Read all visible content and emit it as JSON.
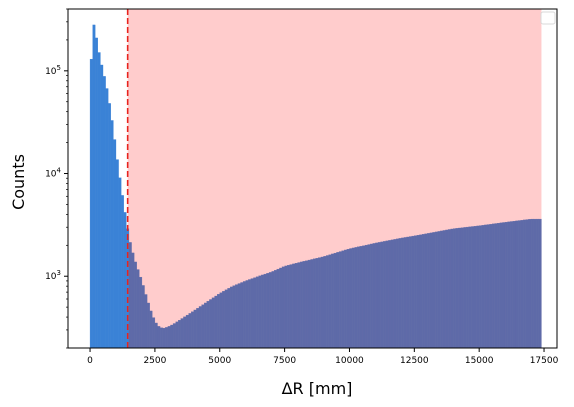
{
  "chart_data": {
    "type": "bar",
    "subtype": "histogram",
    "xlabel": "ΔR [mm]",
    "ylabel": "Counts",
    "y_scale": "log",
    "xlim": [
      -850,
      18000
    ],
    "ylim": [
      200,
      400000
    ],
    "x_ticks": [
      {
        "value": 0,
        "label": "0"
      },
      {
        "value": 2500,
        "label": "2500"
      },
      {
        "value": 5000,
        "label": "5000"
      },
      {
        "value": 7500,
        "label": "7500"
      },
      {
        "value": 10000,
        "label": "10000"
      },
      {
        "value": 12500,
        "label": "12500"
      },
      {
        "value": 15000,
        "label": "15000"
      },
      {
        "value": 17500,
        "label": "17500"
      }
    ],
    "y_ticks": [
      {
        "value": 1000,
        "base": "10",
        "exp": "3"
      },
      {
        "value": 10000,
        "base": "10",
        "exp": "4"
      },
      {
        "value": 100000,
        "base": "10",
        "exp": "5"
      }
    ],
    "cut_line_x": 1450,
    "shaded_region": [
      1450,
      17400
    ],
    "bin_width": 100,
    "x_start": 0,
    "x_end": 17400,
    "counts_control_points": [
      [
        0,
        50000
      ],
      [
        50,
        130000
      ],
      [
        100,
        210000
      ],
      [
        150,
        280000
      ],
      [
        200,
        250000
      ],
      [
        300,
        175000
      ],
      [
        400,
        130000
      ],
      [
        500,
        100000
      ],
      [
        600,
        78000
      ],
      [
        700,
        58000
      ],
      [
        800,
        40000
      ],
      [
        900,
        27000
      ],
      [
        1000,
        17000
      ],
      [
        1100,
        11000
      ],
      [
        1200,
        7500
      ],
      [
        1300,
        5000
      ],
      [
        1400,
        3500
      ],
      [
        1500,
        2400
      ],
      [
        1700,
        1500
      ],
      [
        2000,
        900
      ],
      [
        2200,
        600
      ],
      [
        2400,
        420
      ],
      [
        2600,
        330
      ],
      [
        2800,
        310
      ],
      [
        3000,
        320
      ],
      [
        3200,
        340
      ],
      [
        3500,
        380
      ],
      [
        4000,
        460
      ],
      [
        4500,
        560
      ],
      [
        5000,
        680
      ],
      [
        5500,
        800
      ],
      [
        6000,
        900
      ],
      [
        6500,
        1000
      ],
      [
        7000,
        1100
      ],
      [
        7500,
        1250
      ],
      [
        8000,
        1350
      ],
      [
        9000,
        1550
      ],
      [
        10000,
        1850
      ],
      [
        11000,
        2100
      ],
      [
        12000,
        2350
      ],
      [
        13000,
        2600
      ],
      [
        14000,
        2900
      ],
      [
        15000,
        3100
      ],
      [
        16000,
        3350
      ],
      [
        17000,
        3600
      ],
      [
        17400,
        3600
      ]
    ],
    "colors": {
      "low_bars": "#3a82d6",
      "high_bars": "#5e6aa8",
      "shade": "#ffcccc",
      "cut_line": "#e8231e"
    },
    "legend": {
      "placement": "top-right",
      "entries": []
    }
  }
}
